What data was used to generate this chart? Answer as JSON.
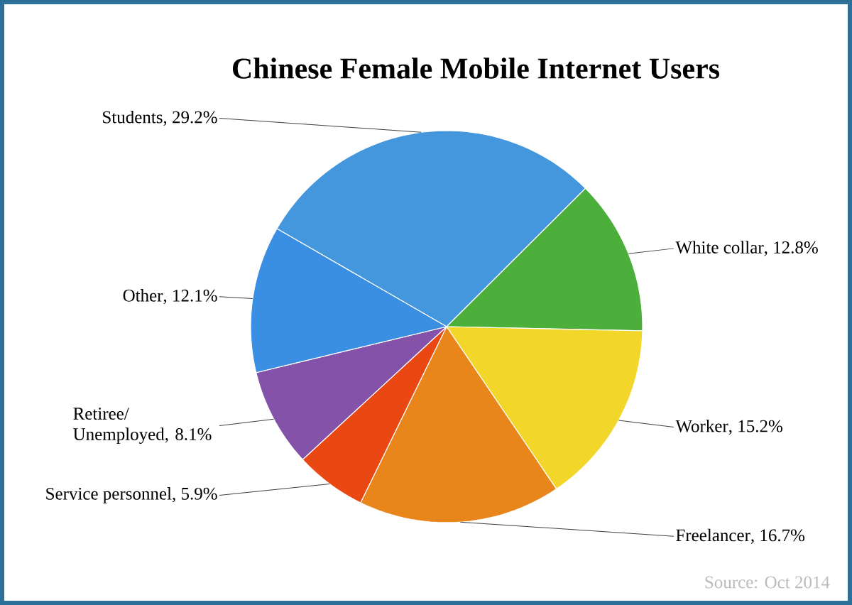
{
  "chart_data": {
    "type": "pie",
    "title": "Chinese Female Mobile Internet Users",
    "categories": [
      "Students",
      "White collar",
      "Worker",
      "Freelancer",
      "Service personnel",
      "Retiree/ Unemployed",
      "Other"
    ],
    "values": [
      29.2,
      12.8,
      15.2,
      16.7,
      5.9,
      8.1,
      12.1
    ],
    "colors": [
      "#4597dd",
      "#4caf3c",
      "#f2d72a",
      "#e8861c",
      "#ea4812",
      "#8452a8",
      "#3b8fe2"
    ],
    "value_labels": [
      ", 29.2%",
      ", 12.8%",
      ", 15.2%",
      ", 16.7%",
      ", 5.9%",
      ", 8.1%",
      ", 12.1%"
    ],
    "annotations": [
      "Source: Oct 2014"
    ]
  }
}
